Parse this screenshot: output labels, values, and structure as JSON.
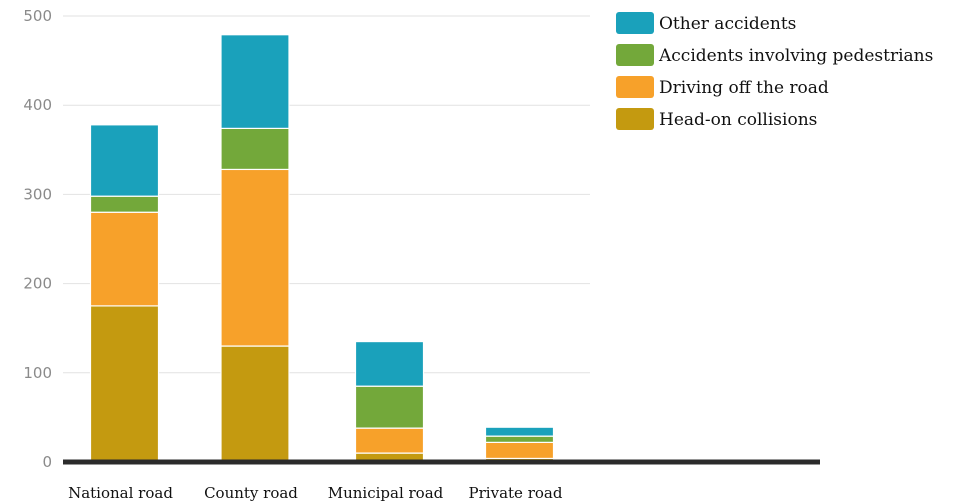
{
  "chart_data": {
    "type": "bar",
    "stacked": true,
    "categories": [
      "National road",
      "County road",
      "Municipal road",
      "Private road"
    ],
    "series": [
      {
        "name": "Head-on collisions",
        "color": "#c49a10",
        "values": [
          175,
          130,
          10,
          4
        ]
      },
      {
        "name": "Driving off the road",
        "color": "#f7a12a",
        "values": [
          105,
          198,
          28,
          18
        ]
      },
      {
        "name": "Accidents involving pedestrians",
        "color": "#73a83a",
        "values": [
          18,
          46,
          47,
          7
        ]
      },
      {
        "name": "Other accidents",
        "color": "#1aa1bb",
        "values": [
          80,
          105,
          50,
          10
        ]
      }
    ],
    "yticks": [
      "0",
      "100",
      "200",
      "300",
      "400",
      "500"
    ],
    "ylim": [
      0,
      500
    ],
    "grid": true,
    "legend": "top-right",
    "legend_order": [
      "Other accidents",
      "Accidents involving pedestrians",
      "Driving off the road",
      "Head-on collisions"
    ]
  }
}
